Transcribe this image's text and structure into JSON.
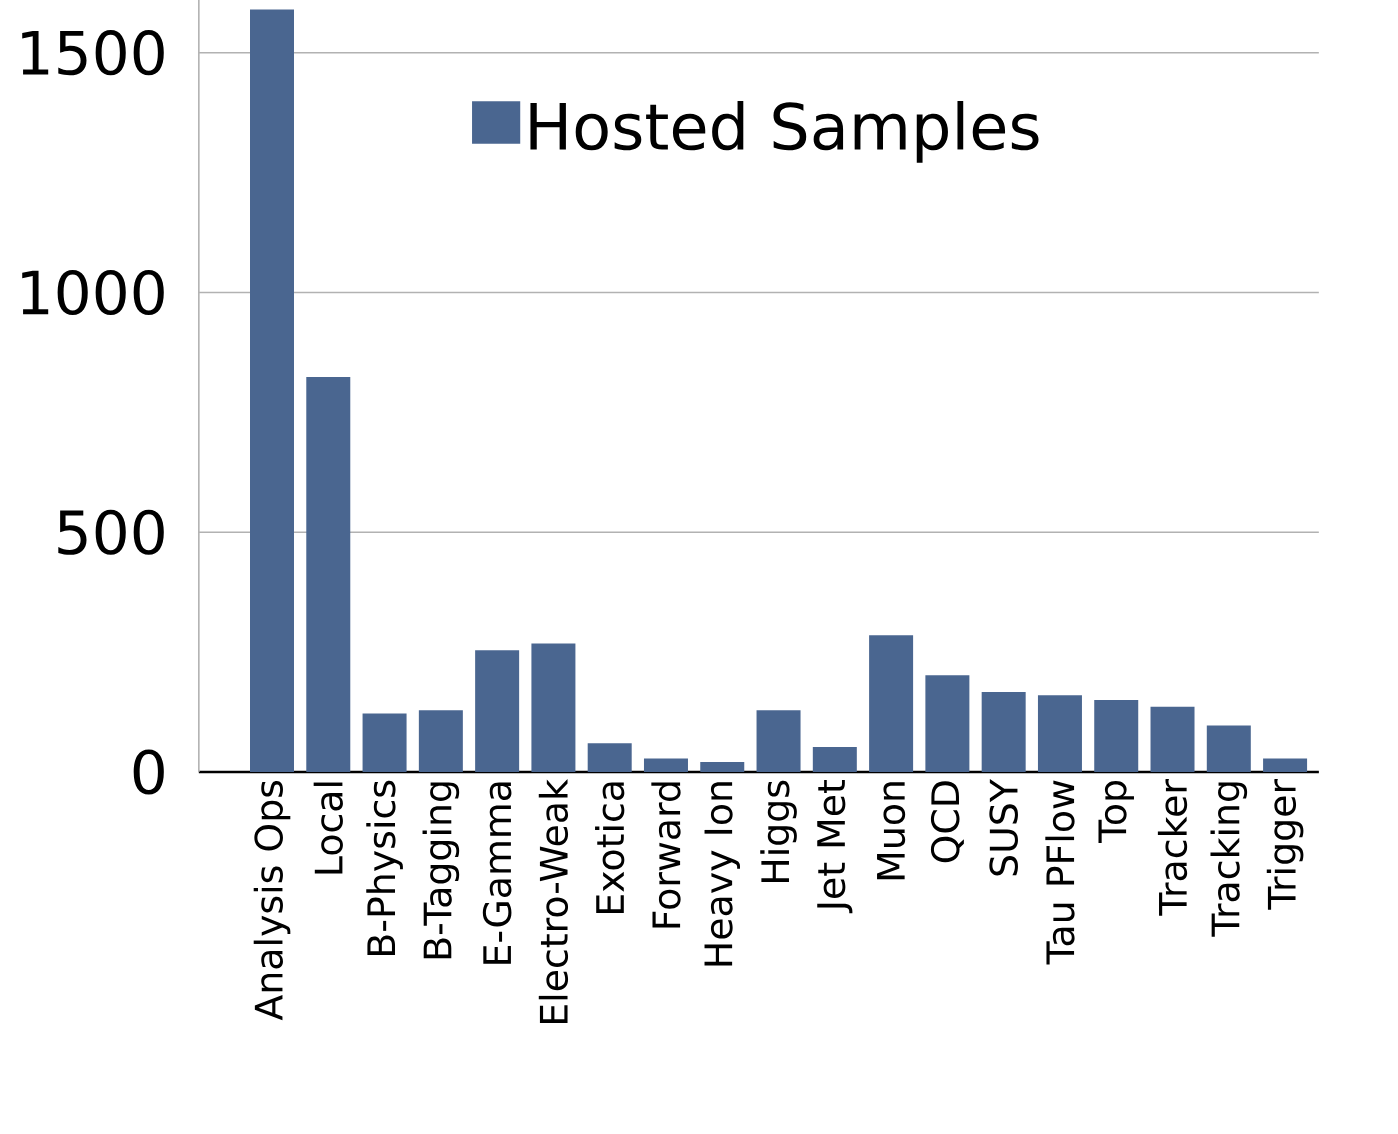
{
  "chart_data": {
    "type": "bar",
    "categories": [
      "Analysis Ops",
      "Local",
      "B-Physics",
      "B-Tagging",
      "E-Gamma",
      "Electro-Weak",
      "Exotica",
      "Forward",
      "Heavy Ion",
      "Higgs",
      "Jet Met",
      "Muon",
      "QCD",
      "SUSY",
      "Tau PFlow",
      "Top",
      "Tracker",
      "Tracking",
      "Trigger"
    ],
    "series": [
      {
        "name": "Hosted Samples",
        "color": "#4a6690",
        "values": [
          1590,
          824,
          122,
          129,
          254,
          268,
          60,
          28,
          21,
          129,
          52,
          285,
          202,
          167,
          160,
          150,
          136,
          97,
          28
        ]
      }
    ],
    "ylim": [
      0,
      1610
    ],
    "yticks": [
      0,
      500,
      1000,
      1500
    ],
    "grid": "y",
    "legend": "top"
  }
}
